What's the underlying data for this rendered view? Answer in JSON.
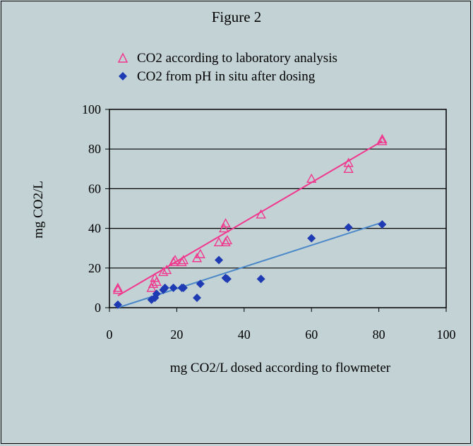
{
  "colors": {
    "background": "#c3d2d5",
    "lab_series": "#f0388e",
    "pH_series": "#1f3bb3",
    "pH_fit_line": "#4a88c8"
  },
  "chart_data": {
    "type": "scatter",
    "title": "Figure 2",
    "xlabel": "mg CO2/L dosed according to flowmeter",
    "ylabel": "mg CO2/L",
    "xlim": [
      0,
      100
    ],
    "ylim": [
      0,
      100
    ],
    "x_ticks": [
      "0",
      "20",
      "40",
      "60",
      "80",
      "100"
    ],
    "y_ticks": [
      "0",
      "20",
      "40",
      "60",
      "80",
      "100"
    ],
    "grid": "horizontal",
    "legend_position": "top",
    "series": [
      {
        "name": "CO2 according to laboratory analysis",
        "marker": "open-triangle",
        "color": "#f0388e",
        "points": [
          [
            2.5,
            9
          ],
          [
            2.5,
            10
          ],
          [
            12.5,
            10
          ],
          [
            13,
            12
          ],
          [
            13.5,
            15
          ],
          [
            14,
            13
          ],
          [
            16,
            18
          ],
          [
            17,
            19
          ],
          [
            19,
            23
          ],
          [
            19.5,
            24
          ],
          [
            21.5,
            23
          ],
          [
            22,
            24
          ],
          [
            26,
            25
          ],
          [
            27,
            27
          ],
          [
            32.5,
            33
          ],
          [
            34,
            40
          ],
          [
            34.5,
            42.5
          ],
          [
            34.5,
            33
          ],
          [
            35,
            34
          ],
          [
            45,
            47
          ],
          [
            60,
            65
          ],
          [
            71,
            70
          ],
          [
            71,
            73
          ],
          [
            81,
            84
          ],
          [
            81,
            85
          ]
        ],
        "trendline": [
          [
            2.5,
            6
          ],
          [
            81,
            84
          ]
        ]
      },
      {
        "name": "CO2 from pH in situ after dosing",
        "marker": "filled-diamond",
        "color": "#1f3bb3",
        "points": [
          [
            2.5,
            1.5
          ],
          [
            12.5,
            4
          ],
          [
            13.5,
            5
          ],
          [
            14,
            7
          ],
          [
            16,
            9
          ],
          [
            16.5,
            10
          ],
          [
            19,
            10
          ],
          [
            21.5,
            10
          ],
          [
            22,
            10
          ],
          [
            26,
            5
          ],
          [
            27,
            12
          ],
          [
            32.5,
            24
          ],
          [
            34.5,
            15
          ],
          [
            35,
            14.5
          ],
          [
            45,
            14.5
          ],
          [
            60,
            35
          ],
          [
            71,
            40.5
          ],
          [
            81,
            42
          ]
        ],
        "trendline": [
          [
            2.5,
            0
          ],
          [
            81,
            43
          ]
        ]
      }
    ]
  }
}
